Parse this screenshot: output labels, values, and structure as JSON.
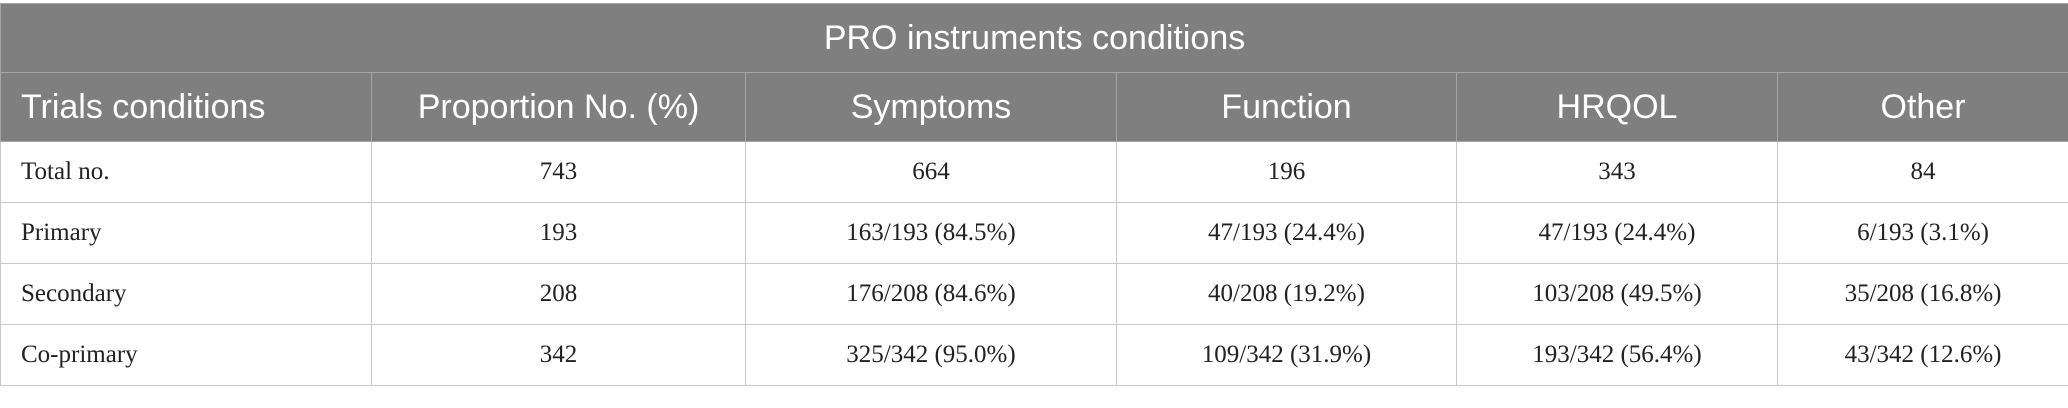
{
  "table": {
    "title": "PRO instruments conditions",
    "header": [
      "Trials conditions",
      "Proportion No. (%)",
      "Symptoms",
      "Function",
      "HRQOL",
      "Other"
    ],
    "rows": [
      [
        "Total no.",
        "743",
        "664",
        "196",
        "343",
        "84"
      ],
      [
        "Primary",
        "193",
        "163/193 (84.5%)",
        "47/193 (24.4%)",
        "47/193 (24.4%)",
        "6/193 (3.1%)"
      ],
      [
        "Secondary",
        "208",
        "176/208 (84.6%)",
        "40/208 (19.2%)",
        "103/208 (49.5%)",
        "35/208 (16.8%)"
      ],
      [
        "Co-primary",
        "342",
        "325/342 (95.0%)",
        "109/342 (31.9%)",
        "193/342 (56.4%)",
        "43/342 (12.6%)"
      ]
    ]
  }
}
